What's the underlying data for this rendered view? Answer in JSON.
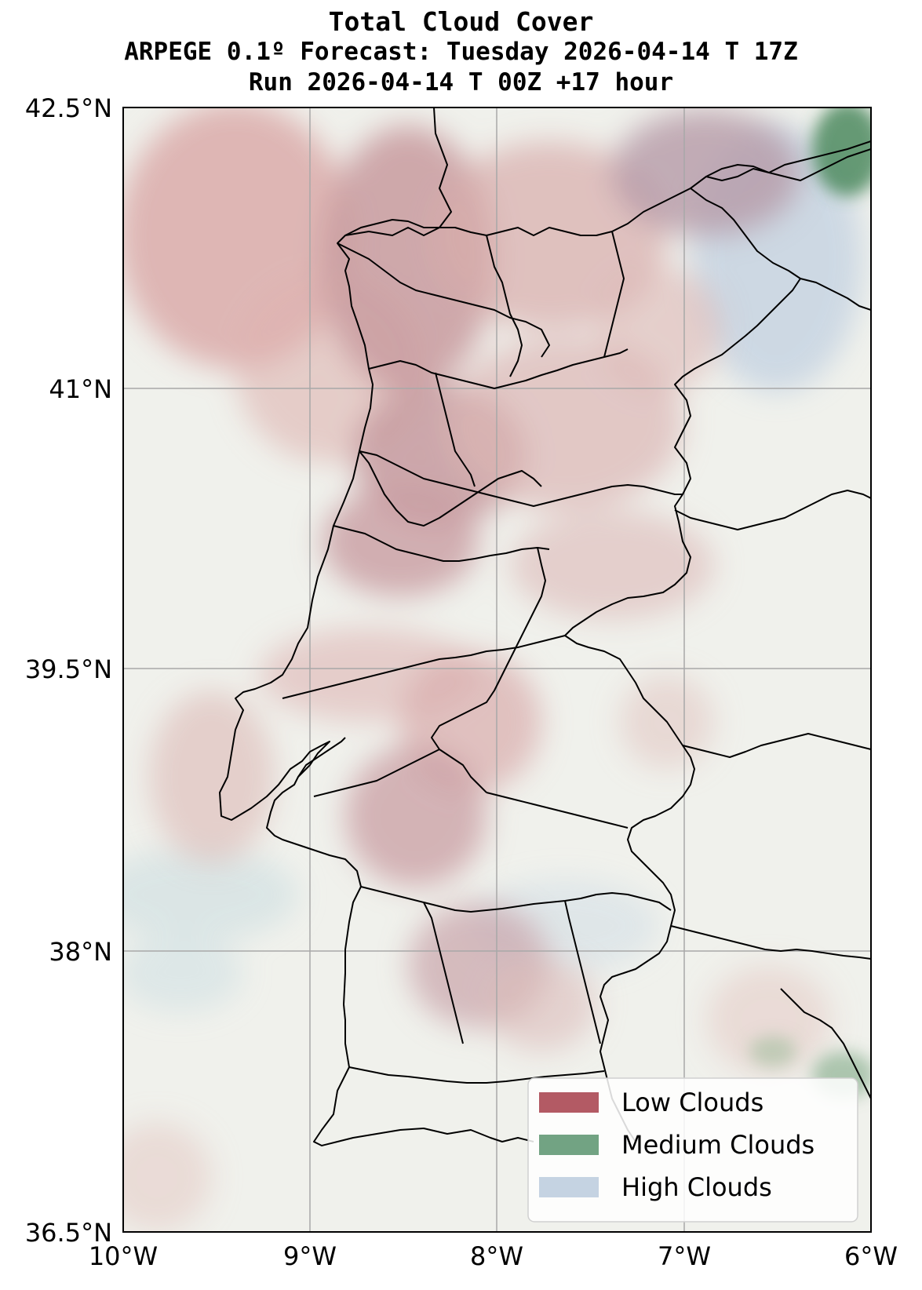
{
  "title": {
    "line1": "Total Cloud Cover",
    "line2": "ARPEGE 0.1º Forecast: Tuesday 2026-04-14 T 17Z",
    "line3": "Run 2026-04-14 T 00Z +17 hour"
  },
  "map_extent": {
    "lon_min": -10,
    "lon_max": -6,
    "lat_min": 36.5,
    "lat_max": 42.5
  },
  "axes": {
    "lat_ticks": [
      {
        "value": 42.5,
        "label": "42.5°N"
      },
      {
        "value": 41.0,
        "label": "41°N"
      },
      {
        "value": 39.5,
        "label": "39.5°N"
      },
      {
        "value": 38.0,
        "label": "38°N"
      },
      {
        "value": 36.5,
        "label": "36.5°N"
      }
    ],
    "lon_ticks": [
      {
        "value": -10,
        "label": "10°W"
      },
      {
        "value": -9,
        "label": "9°W"
      },
      {
        "value": -8,
        "label": "8°W"
      },
      {
        "value": -7,
        "label": "7°W"
      },
      {
        "value": -6,
        "label": "6°W"
      }
    ],
    "grid": true
  },
  "legend": {
    "placement": "bottom-right",
    "items": [
      {
        "label": "Low Clouds",
        "color": "#b35a64"
      },
      {
        "label": "Medium Clouds",
        "color": "#72a383"
      },
      {
        "label": "High Clouds",
        "color": "#c5d3e2"
      }
    ]
  },
  "colors": {
    "background": "#f0f1ec",
    "low": "#b35a64",
    "medium": "#4d8a5f",
    "high": "#c5d3e2",
    "grid": "#a0a0a0",
    "borders": "#000000"
  }
}
